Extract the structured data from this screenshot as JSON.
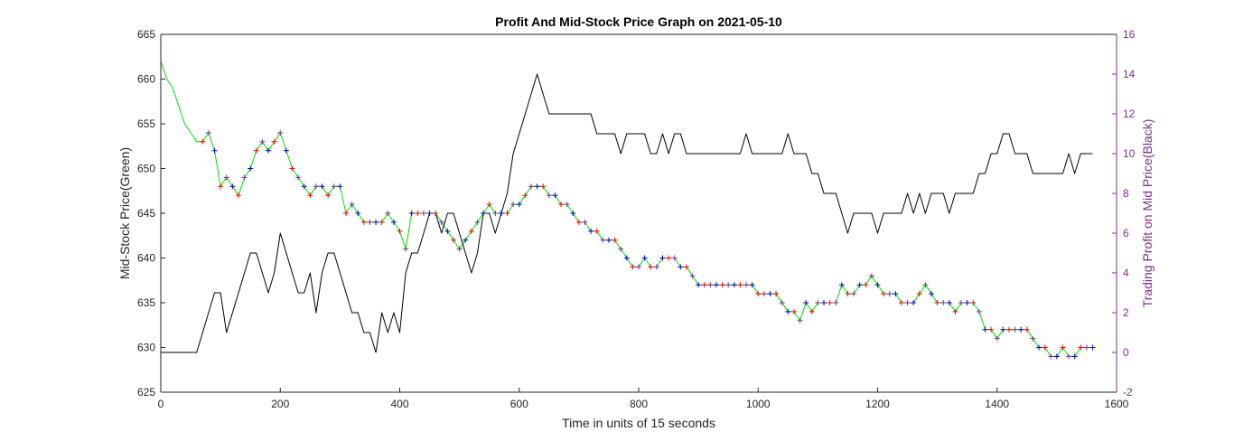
{
  "chart_data": {
    "type": "line",
    "title": "Profit And Mid-Stock Price Graph on 2021-05-10",
    "xlabel": "Time in units of 15 seconds",
    "ylabel_left": "Mid-Stock Price(Green)",
    "ylabel_right": "Trading Profit on Mid Price(Black)",
    "xlim": [
      0,
      1600
    ],
    "ylim_left": [
      625,
      665
    ],
    "ylim_right": [
      -2,
      16
    ],
    "xticks": [
      0,
      200,
      400,
      600,
      800,
      1000,
      1200,
      1400,
      1600
    ],
    "yticks_left": [
      625,
      630,
      635,
      640,
      645,
      650,
      655,
      660,
      665
    ],
    "yticks_right": [
      -2,
      0,
      2,
      4,
      6,
      8,
      10,
      12,
      14,
      16
    ],
    "grid": false,
    "colors": {
      "price": "#00e000",
      "profit": "#000000",
      "buy_marker": "#0000cc",
      "sell_marker": "#ff0000",
      "hold_marker": "#7e2f8e",
      "right_axis": "#7e2f8e"
    },
    "series": [
      {
        "axis": "left",
        "color": "#00e000",
        "x": [
          0,
          10,
          20,
          30,
          40,
          50,
          60,
          70,
          80,
          90,
          100,
          110,
          120,
          130,
          140,
          150,
          160,
          170,
          180,
          190,
          200,
          210,
          220,
          230,
          240,
          250,
          260,
          270,
          280,
          290,
          300,
          310,
          320,
          330,
          340,
          350,
          360,
          370,
          380,
          390,
          400,
          410,
          420,
          430,
          440,
          450,
          460,
          470,
          480,
          490,
          500,
          510,
          520,
          530,
          540,
          550,
          560,
          570,
          580,
          590,
          600,
          610,
          620,
          630,
          640,
          650,
          660,
          670,
          680,
          690,
          700,
          710,
          720,
          730,
          740,
          750,
          760,
          770,
          780,
          790,
          800,
          810,
          820,
          830,
          840,
          850,
          860,
          870,
          880,
          890,
          900,
          910,
          920,
          930,
          940,
          950,
          960,
          970,
          980,
          990,
          1000,
          1010,
          1020,
          1030,
          1040,
          1050,
          1060,
          1070,
          1080,
          1090,
          1100,
          1110,
          1120,
          1130,
          1140,
          1150,
          1160,
          1170,
          1180,
          1190,
          1200,
          1210,
          1220,
          1230,
          1240,
          1250,
          1260,
          1270,
          1280,
          1290,
          1300,
          1310,
          1320,
          1330,
          1340,
          1350,
          1360,
          1370,
          1380,
          1390,
          1400,
          1410,
          1420,
          1430,
          1440,
          1450,
          1460,
          1470,
          1480,
          1490,
          1500,
          1510,
          1520,
          1530,
          1540,
          1550,
          1560
        ],
        "y": [
          662,
          660,
          659,
          657,
          655,
          654,
          653,
          653,
          654,
          652,
          648,
          649,
          648,
          647,
          649,
          650,
          652,
          653,
          652,
          653,
          654,
          652,
          650,
          649,
          648,
          647,
          648,
          648,
          647,
          648,
          648,
          645,
          646,
          645,
          644,
          644,
          644,
          644,
          645,
          644,
          643,
          641,
          645,
          645,
          645,
          645,
          645,
          644,
          643,
          642,
          641,
          642,
          643,
          644,
          645,
          646,
          645,
          645,
          645,
          646,
          646,
          647,
          648,
          648,
          648,
          647,
          647,
          646,
          646,
          645,
          644,
          644,
          643,
          643,
          642,
          642,
          642,
          641,
          640,
          639,
          639,
          640,
          639,
          639,
          640,
          640,
          640,
          639,
          639,
          638,
          637,
          637,
          637,
          637,
          637,
          637,
          637,
          637,
          637,
          637,
          636,
          636,
          636,
          636,
          635,
          634,
          634,
          633,
          635,
          634,
          635,
          635,
          635,
          635,
          637,
          636,
          636,
          637,
          637,
          638,
          637,
          636,
          636,
          636,
          635,
          635,
          635,
          636,
          637,
          636,
          635,
          635,
          635,
          634,
          635,
          635,
          635,
          634,
          632,
          632,
          631,
          632,
          632,
          632,
          632,
          632,
          631,
          630,
          630,
          629,
          629,
          630,
          629,
          629,
          630,
          630,
          630
        ]
      },
      {
        "axis": "right",
        "color": "#000000",
        "x": [
          0,
          10,
          20,
          30,
          40,
          50,
          60,
          70,
          80,
          90,
          100,
          110,
          120,
          130,
          140,
          150,
          160,
          170,
          180,
          190,
          200,
          210,
          220,
          230,
          240,
          250,
          260,
          270,
          280,
          290,
          300,
          310,
          320,
          330,
          340,
          350,
          360,
          370,
          380,
          390,
          400,
          410,
          420,
          430,
          440,
          450,
          460,
          470,
          480,
          490,
          500,
          510,
          520,
          530,
          540,
          550,
          560,
          570,
          580,
          590,
          600,
          610,
          620,
          630,
          640,
          650,
          660,
          670,
          680,
          690,
          700,
          710,
          720,
          730,
          740,
          750,
          760,
          770,
          780,
          790,
          800,
          810,
          820,
          830,
          840,
          850,
          860,
          870,
          880,
          890,
          900,
          910,
          920,
          930,
          940,
          950,
          960,
          970,
          980,
          990,
          1000,
          1010,
          1020,
          1030,
          1040,
          1050,
          1060,
          1070,
          1080,
          1090,
          1100,
          1110,
          1120,
          1130,
          1140,
          1150,
          1160,
          1170,
          1180,
          1190,
          1200,
          1210,
          1220,
          1230,
          1240,
          1250,
          1260,
          1270,
          1280,
          1290,
          1300,
          1310,
          1320,
          1330,
          1340,
          1350,
          1360,
          1370,
          1380,
          1390,
          1400,
          1410,
          1420,
          1430,
          1440,
          1450,
          1460,
          1470,
          1480,
          1490,
          1500,
          1510,
          1520,
          1530,
          1540,
          1550,
          1560
        ],
        "y": [
          0,
          0,
          0,
          0,
          0,
          0,
          0,
          1,
          2,
          3,
          3,
          1,
          2,
          3,
          4,
          5,
          5,
          4,
          3,
          4,
          6,
          5,
          4,
          3,
          3,
          4,
          2,
          4,
          5,
          5,
          4,
          3,
          2,
          2,
          1,
          1,
          0,
          2,
          1,
          2,
          1,
          4,
          5,
          5,
          6,
          7,
          7,
          6,
          7,
          7,
          6,
          5,
          4,
          5,
          7,
          7,
          6,
          7,
          8,
          10,
          11,
          12,
          13,
          14,
          13,
          12,
          12,
          12,
          12,
          12,
          12,
          12,
          12,
          11,
          11,
          11,
          11,
          10,
          11,
          11,
          11,
          11,
          10,
          10,
          11,
          10,
          11,
          11,
          10,
          10,
          10,
          10,
          10,
          10,
          10,
          10,
          10,
          10,
          11,
          10,
          10,
          10,
          10,
          10,
          10,
          11,
          10,
          10,
          10,
          9,
          9,
          8,
          8,
          8,
          7,
          6,
          7,
          7,
          7,
          7,
          6,
          7,
          7,
          7,
          7,
          8,
          7,
          8,
          7,
          8,
          8,
          8,
          7,
          8,
          8,
          8,
          8,
          9,
          9,
          10,
          10,
          11,
          11,
          10,
          10,
          10,
          9,
          9,
          9,
          9,
          9,
          9,
          10,
          9,
          10,
          10,
          10
        ]
      }
    ]
  }
}
